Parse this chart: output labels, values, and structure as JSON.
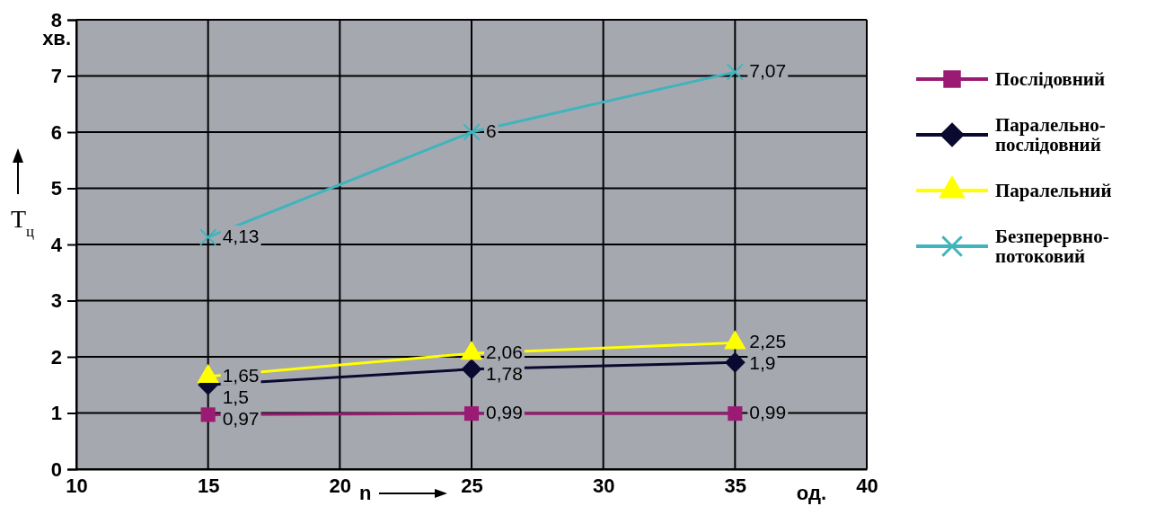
{
  "chart_data": {
    "type": "line",
    "xlabel": "n",
    "ylabel": "T$_{ц}$",
    "annotations": [
      "хв.",
      "од."
    ],
    "x": [
      15,
      25,
      35
    ],
    "xlim": [
      10,
      40
    ],
    "xticks": [
      10,
      15,
      20,
      25,
      30,
      35,
      40
    ],
    "ylim": [
      0,
      8
    ],
    "yticks": [
      0,
      1,
      2,
      3,
      4,
      5,
      6,
      7,
      8
    ],
    "grid": true,
    "legend": "right",
    "series": [
      {
        "name": "Послідовний",
        "color": "#9b1b74",
        "marker": "square",
        "values": [
          0.97,
          0.99,
          0.99
        ],
        "value_labels": [
          "0,97",
          "0,99",
          "0,99"
        ]
      },
      {
        "name": "Паралельно-послідовний",
        "color": "#0a0a30",
        "marker": "diamond",
        "values": [
          1.5,
          1.78,
          1.9
        ],
        "value_labels": [
          "1,5",
          "1,78",
          "1,9"
        ]
      },
      {
        "name": "Паралельний",
        "color": "#ffff00",
        "marker": "triangle",
        "values": [
          1.65,
          2.06,
          2.25
        ],
        "value_labels": [
          "1,65",
          "2,06",
          "2,25"
        ]
      },
      {
        "name": "Безперервно-потоковий",
        "color": "#3fb4bc",
        "marker": "cross",
        "values": [
          4.13,
          6,
          7.07
        ],
        "value_labels": [
          "4,13",
          "6",
          "7,07"
        ]
      }
    ]
  }
}
